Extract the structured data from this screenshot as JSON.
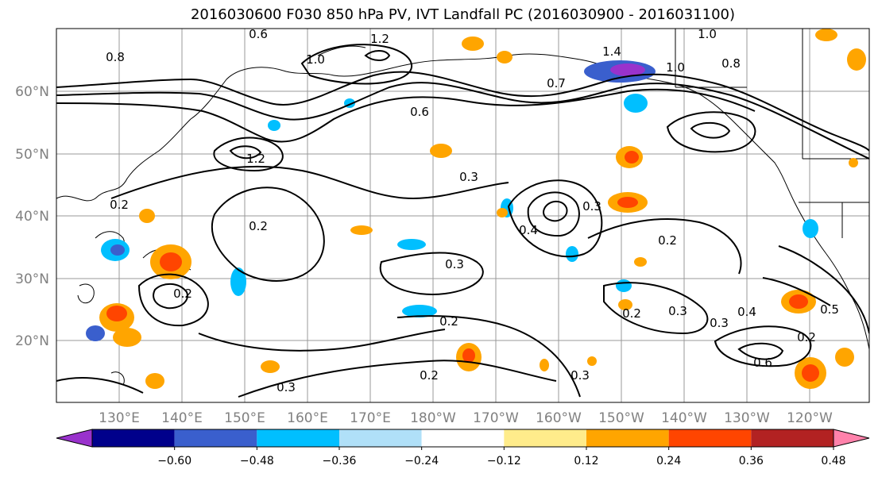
{
  "title": "2016030600 F030 850 hPa PV, IVT Landfall PC (2016030900 - 2016031100)",
  "map": {
    "lon_ticks": [
      "130°E",
      "140°E",
      "150°E",
      "160°E",
      "170°E",
      "180°W",
      "170°W",
      "160°W",
      "150°W",
      "140°W",
      "130°W",
      "120°W"
    ],
    "lat_ticks": [
      "20°N",
      "30°N",
      "40°N",
      "50°N",
      "60°N"
    ],
    "contour_labels": [
      "0.6",
      "1.2",
      "1.0",
      "0.8",
      "1.4",
      "1.0",
      "0.8",
      "0.7",
      "0.6",
      "1.0",
      "1.2",
      "0.2",
      "0.2",
      "0.3",
      "0.3",
      "0.2",
      "0.4",
      "0.3",
      "0.2",
      "0.3",
      "0.3",
      "0.4",
      "0.5",
      "0.2",
      "0.6",
      "0.2",
      "0.2",
      "0.3",
      "0.2",
      "0.3"
    ]
  },
  "colorbar": {
    "tick_labels": [
      "−0.60",
      "−0.48",
      "−0.36",
      "−0.24",
      "−0.12",
      "0.12",
      "0.24",
      "0.36",
      "0.48",
      "0.60"
    ],
    "colors": [
      "#9932cc",
      "#00008b",
      "#3a5fcd",
      "#00bfff",
      "#b0e0f8",
      "#ffffff",
      "#ffec8b",
      "#ffa500",
      "#ff4500",
      "#b22222",
      "#ff82ab"
    ]
  }
}
